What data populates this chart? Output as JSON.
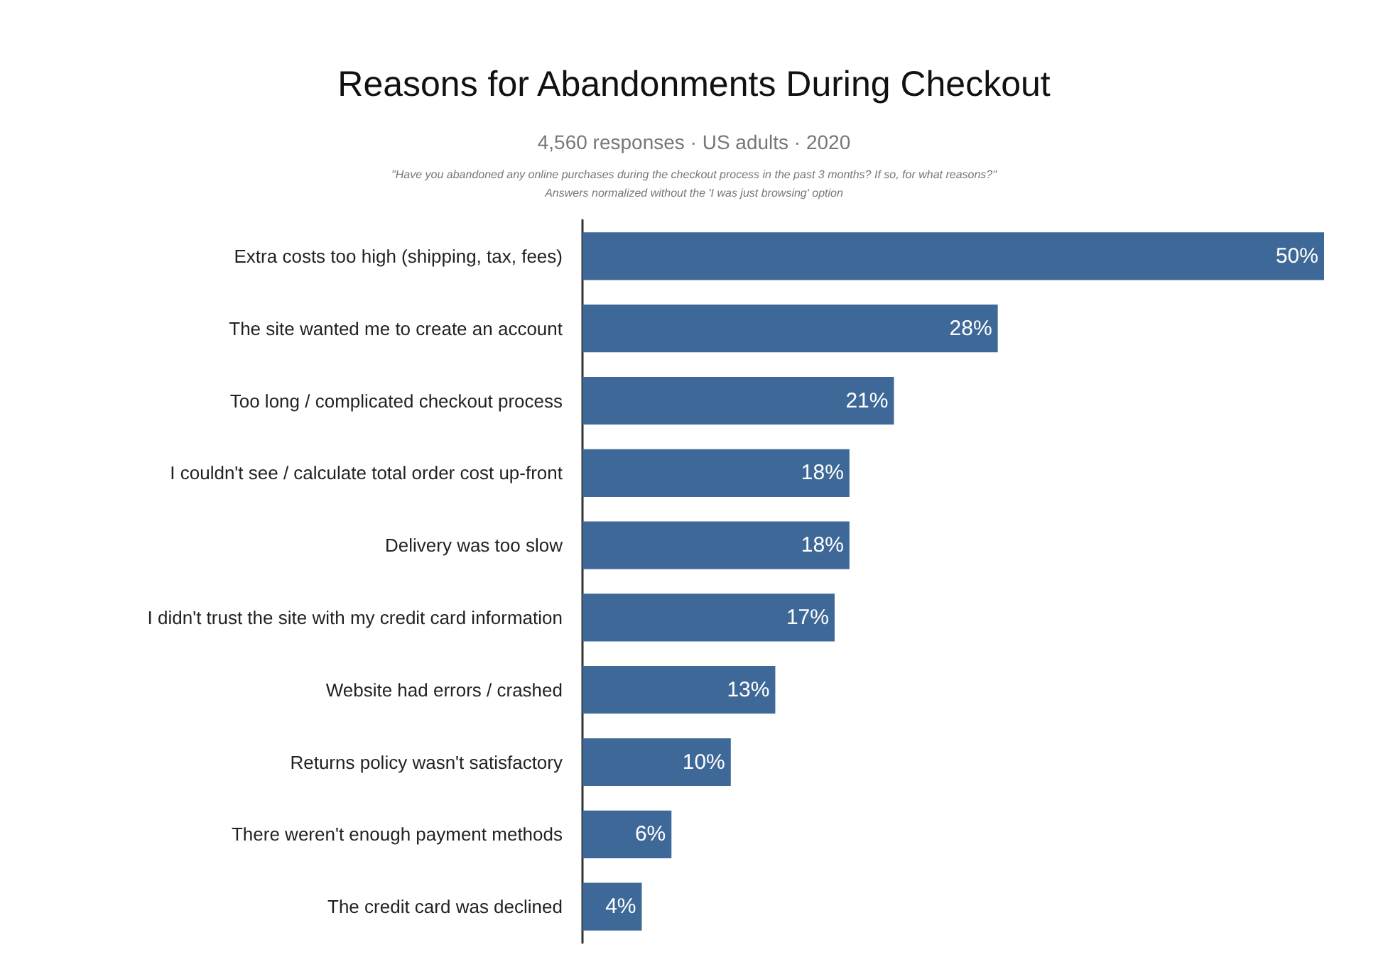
{
  "chart_data": {
    "type": "bar",
    "orientation": "horizontal",
    "title": "Reasons for Abandonments During Checkout",
    "subtitle": "4,560 responses · US adults · 2020",
    "annotations": [
      "\"Have you abandoned any online purchases during the checkout process in the past 3 months? If so, for what reasons?\"",
      "Answers normalized without the 'I was just browsing' option"
    ],
    "categories": [
      "Extra costs too high (shipping, tax, fees)",
      "The site wanted me to create an account",
      "Too long / complicated checkout process",
      "I couldn't see / calculate total order cost up-front",
      "Delivery was too slow",
      "I didn't trust the site with my credit card information",
      "Website had errors / crashed",
      "Returns policy wasn't satisfactory",
      "There weren't enough payment methods",
      "The credit card was declined"
    ],
    "values": [
      50,
      28,
      21,
      18,
      18,
      17,
      13,
      10,
      6,
      4
    ],
    "value_labels": [
      "50%",
      "28%",
      "21%",
      "18%",
      "18%",
      "17%",
      "13%",
      "10%",
      "6%",
      "4%"
    ],
    "color": "#3e6897",
    "xlim": [
      0,
      50
    ],
    "tick_labels": "y"
  }
}
